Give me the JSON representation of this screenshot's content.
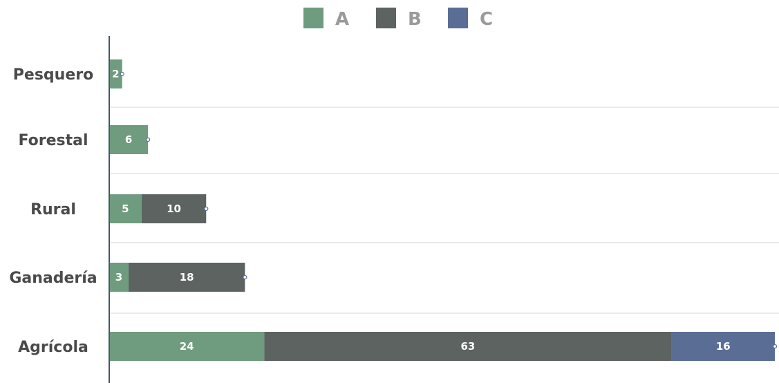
{
  "chart_data": {
    "type": "bar",
    "orientation": "horizontal",
    "stacked": true,
    "categories": [
      "Pesquero",
      "Forestal",
      "Rural",
      "Ganadería",
      "Agrícola"
    ],
    "series": [
      {
        "name": "A",
        "values": [
          2,
          6,
          5,
          3,
          24
        ],
        "color": "#6f9b7f"
      },
      {
        "name": "B",
        "values": [
          0,
          0,
          10,
          18,
          63
        ],
        "color": "#5c6361"
      },
      {
        "name": "C",
        "values": [
          0,
          0,
          0,
          0,
          16
        ],
        "color": "#5a6e95"
      }
    ],
    "xlim": [
      0,
      103
    ],
    "legend_position": "top",
    "grid": "horizontal separators",
    "axis_color": "#3f5a6e"
  }
}
